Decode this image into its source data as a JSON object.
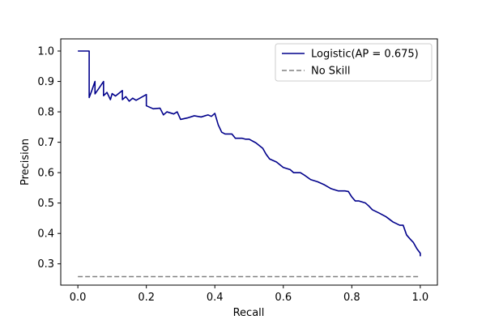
{
  "chart_data": {
    "type": "line",
    "title": "",
    "xlabel": "Recall",
    "ylabel": "Precision",
    "xlim": [
      -0.05,
      1.05
    ],
    "ylim": [
      0.23,
      1.04
    ],
    "xticks": [
      0.0,
      0.2,
      0.4,
      0.6,
      0.8,
      1.0
    ],
    "yticks": [
      0.3,
      0.4,
      0.5,
      0.6,
      0.7,
      0.8,
      0.9,
      1.0
    ],
    "xtick_labels": [
      "0.0",
      "0.2",
      "0.4",
      "0.6",
      "0.8",
      "1.0"
    ],
    "ytick_labels": [
      "0.3",
      "0.4",
      "0.5",
      "0.6",
      "0.7",
      "0.8",
      "0.9",
      "1.0"
    ],
    "grid": false,
    "legend_position": "top-right",
    "series": [
      {
        "name": "Logistic(AP = 0.675)",
        "color": "#00008b",
        "style": "solid",
        "x": [
          0.0,
          0.033,
          0.033,
          0.04,
          0.05,
          0.05,
          0.06,
          0.075,
          0.075,
          0.085,
          0.095,
          0.1,
          0.11,
          0.13,
          0.13,
          0.14,
          0.15,
          0.16,
          0.17,
          0.2,
          0.2,
          0.22,
          0.24,
          0.25,
          0.26,
          0.28,
          0.29,
          0.3,
          0.32,
          0.34,
          0.36,
          0.38,
          0.39,
          0.4,
          0.41,
          0.42,
          0.43,
          0.45,
          0.46,
          0.47,
          0.48,
          0.49,
          0.5,
          0.52,
          0.54,
          0.55,
          0.56,
          0.58,
          0.6,
          0.62,
          0.63,
          0.65,
          0.66,
          0.68,
          0.7,
          0.72,
          0.74,
          0.76,
          0.78,
          0.79,
          0.8,
          0.81,
          0.82,
          0.84,
          0.85,
          0.86,
          0.88,
          0.9,
          0.92,
          0.94,
          0.95,
          0.96,
          0.97,
          0.98,
          0.99,
          1.0,
          1.0
        ],
        "y": [
          1.0,
          1.0,
          0.847,
          0.868,
          0.9,
          0.859,
          0.875,
          0.9,
          0.853,
          0.864,
          0.84,
          0.86,
          0.852,
          0.87,
          0.84,
          0.85,
          0.835,
          0.845,
          0.838,
          0.857,
          0.82,
          0.81,
          0.812,
          0.79,
          0.8,
          0.793,
          0.8,
          0.775,
          0.78,
          0.787,
          0.783,
          0.79,
          0.785,
          0.795,
          0.757,
          0.733,
          0.727,
          0.727,
          0.713,
          0.713,
          0.713,
          0.71,
          0.71,
          0.698,
          0.68,
          0.66,
          0.645,
          0.635,
          0.617,
          0.61,
          0.6,
          0.6,
          0.593,
          0.577,
          0.57,
          0.56,
          0.547,
          0.54,
          0.54,
          0.538,
          0.52,
          0.507,
          0.507,
          0.5,
          0.49,
          0.478,
          0.467,
          0.455,
          0.438,
          0.427,
          0.427,
          0.395,
          0.382,
          0.37,
          0.35,
          0.335,
          0.325
        ]
      },
      {
        "name": "No Skill",
        "color": "#808080",
        "style": "dashed",
        "x": [
          0.0,
          1.0
        ],
        "y": [
          0.258,
          0.258
        ]
      }
    ]
  }
}
